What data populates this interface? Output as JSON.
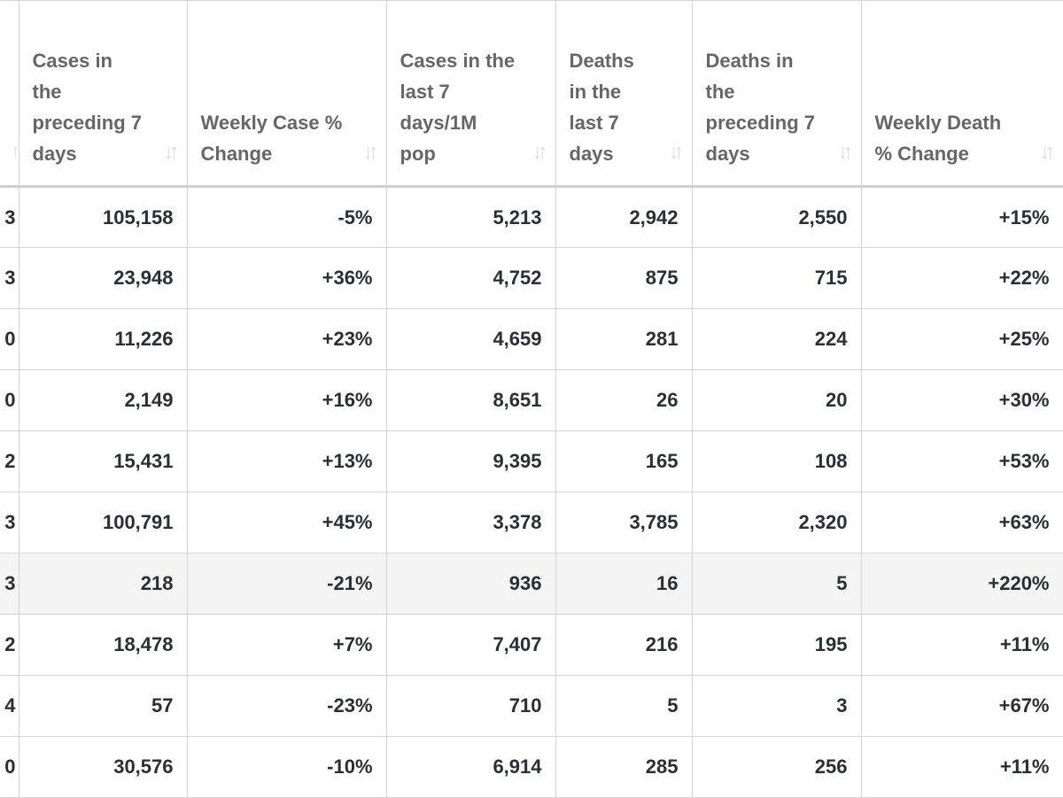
{
  "headers": [
    {
      "label": ""
    },
    {
      "label": "Cases in the preceding 7 days"
    },
    {
      "label": "Weekly Case % Change"
    },
    {
      "label": "Cases in the last 7 days/1M pop"
    },
    {
      "label": "Deaths in the last 7 days"
    },
    {
      "label": "Deaths in the preceding 7 days"
    },
    {
      "label": "Weekly Death % Change"
    }
  ],
  "rows": [
    [
      "3",
      "105,158",
      "-5%",
      "5,213",
      "2,942",
      "2,550",
      "+15%"
    ],
    [
      "3",
      "23,948",
      "+36%",
      "4,752",
      "875",
      "715",
      "+22%"
    ],
    [
      "0",
      "11,226",
      "+23%",
      "4,659",
      "281",
      "224",
      "+25%"
    ],
    [
      "0",
      "2,149",
      "+16%",
      "8,651",
      "26",
      "20",
      "+30%"
    ],
    [
      "2",
      "15,431",
      "+13%",
      "9,395",
      "165",
      "108",
      "+53%"
    ],
    [
      "3",
      "100,791",
      "+45%",
      "3,378",
      "3,785",
      "2,320",
      "+63%"
    ],
    [
      "3",
      "218",
      "-21%",
      "936",
      "16",
      "5",
      "+220%"
    ],
    [
      "2",
      "18,478",
      "+7%",
      "7,407",
      "216",
      "195",
      "+11%"
    ],
    [
      "4",
      "57",
      "-23%",
      "710",
      "5",
      "3",
      "+67%"
    ],
    [
      "0",
      "30,576",
      "-10%",
      "6,914",
      "285",
      "256",
      "+11%"
    ]
  ],
  "highlighted_row": 6,
  "sort_icon": "sort-arrows-icon"
}
